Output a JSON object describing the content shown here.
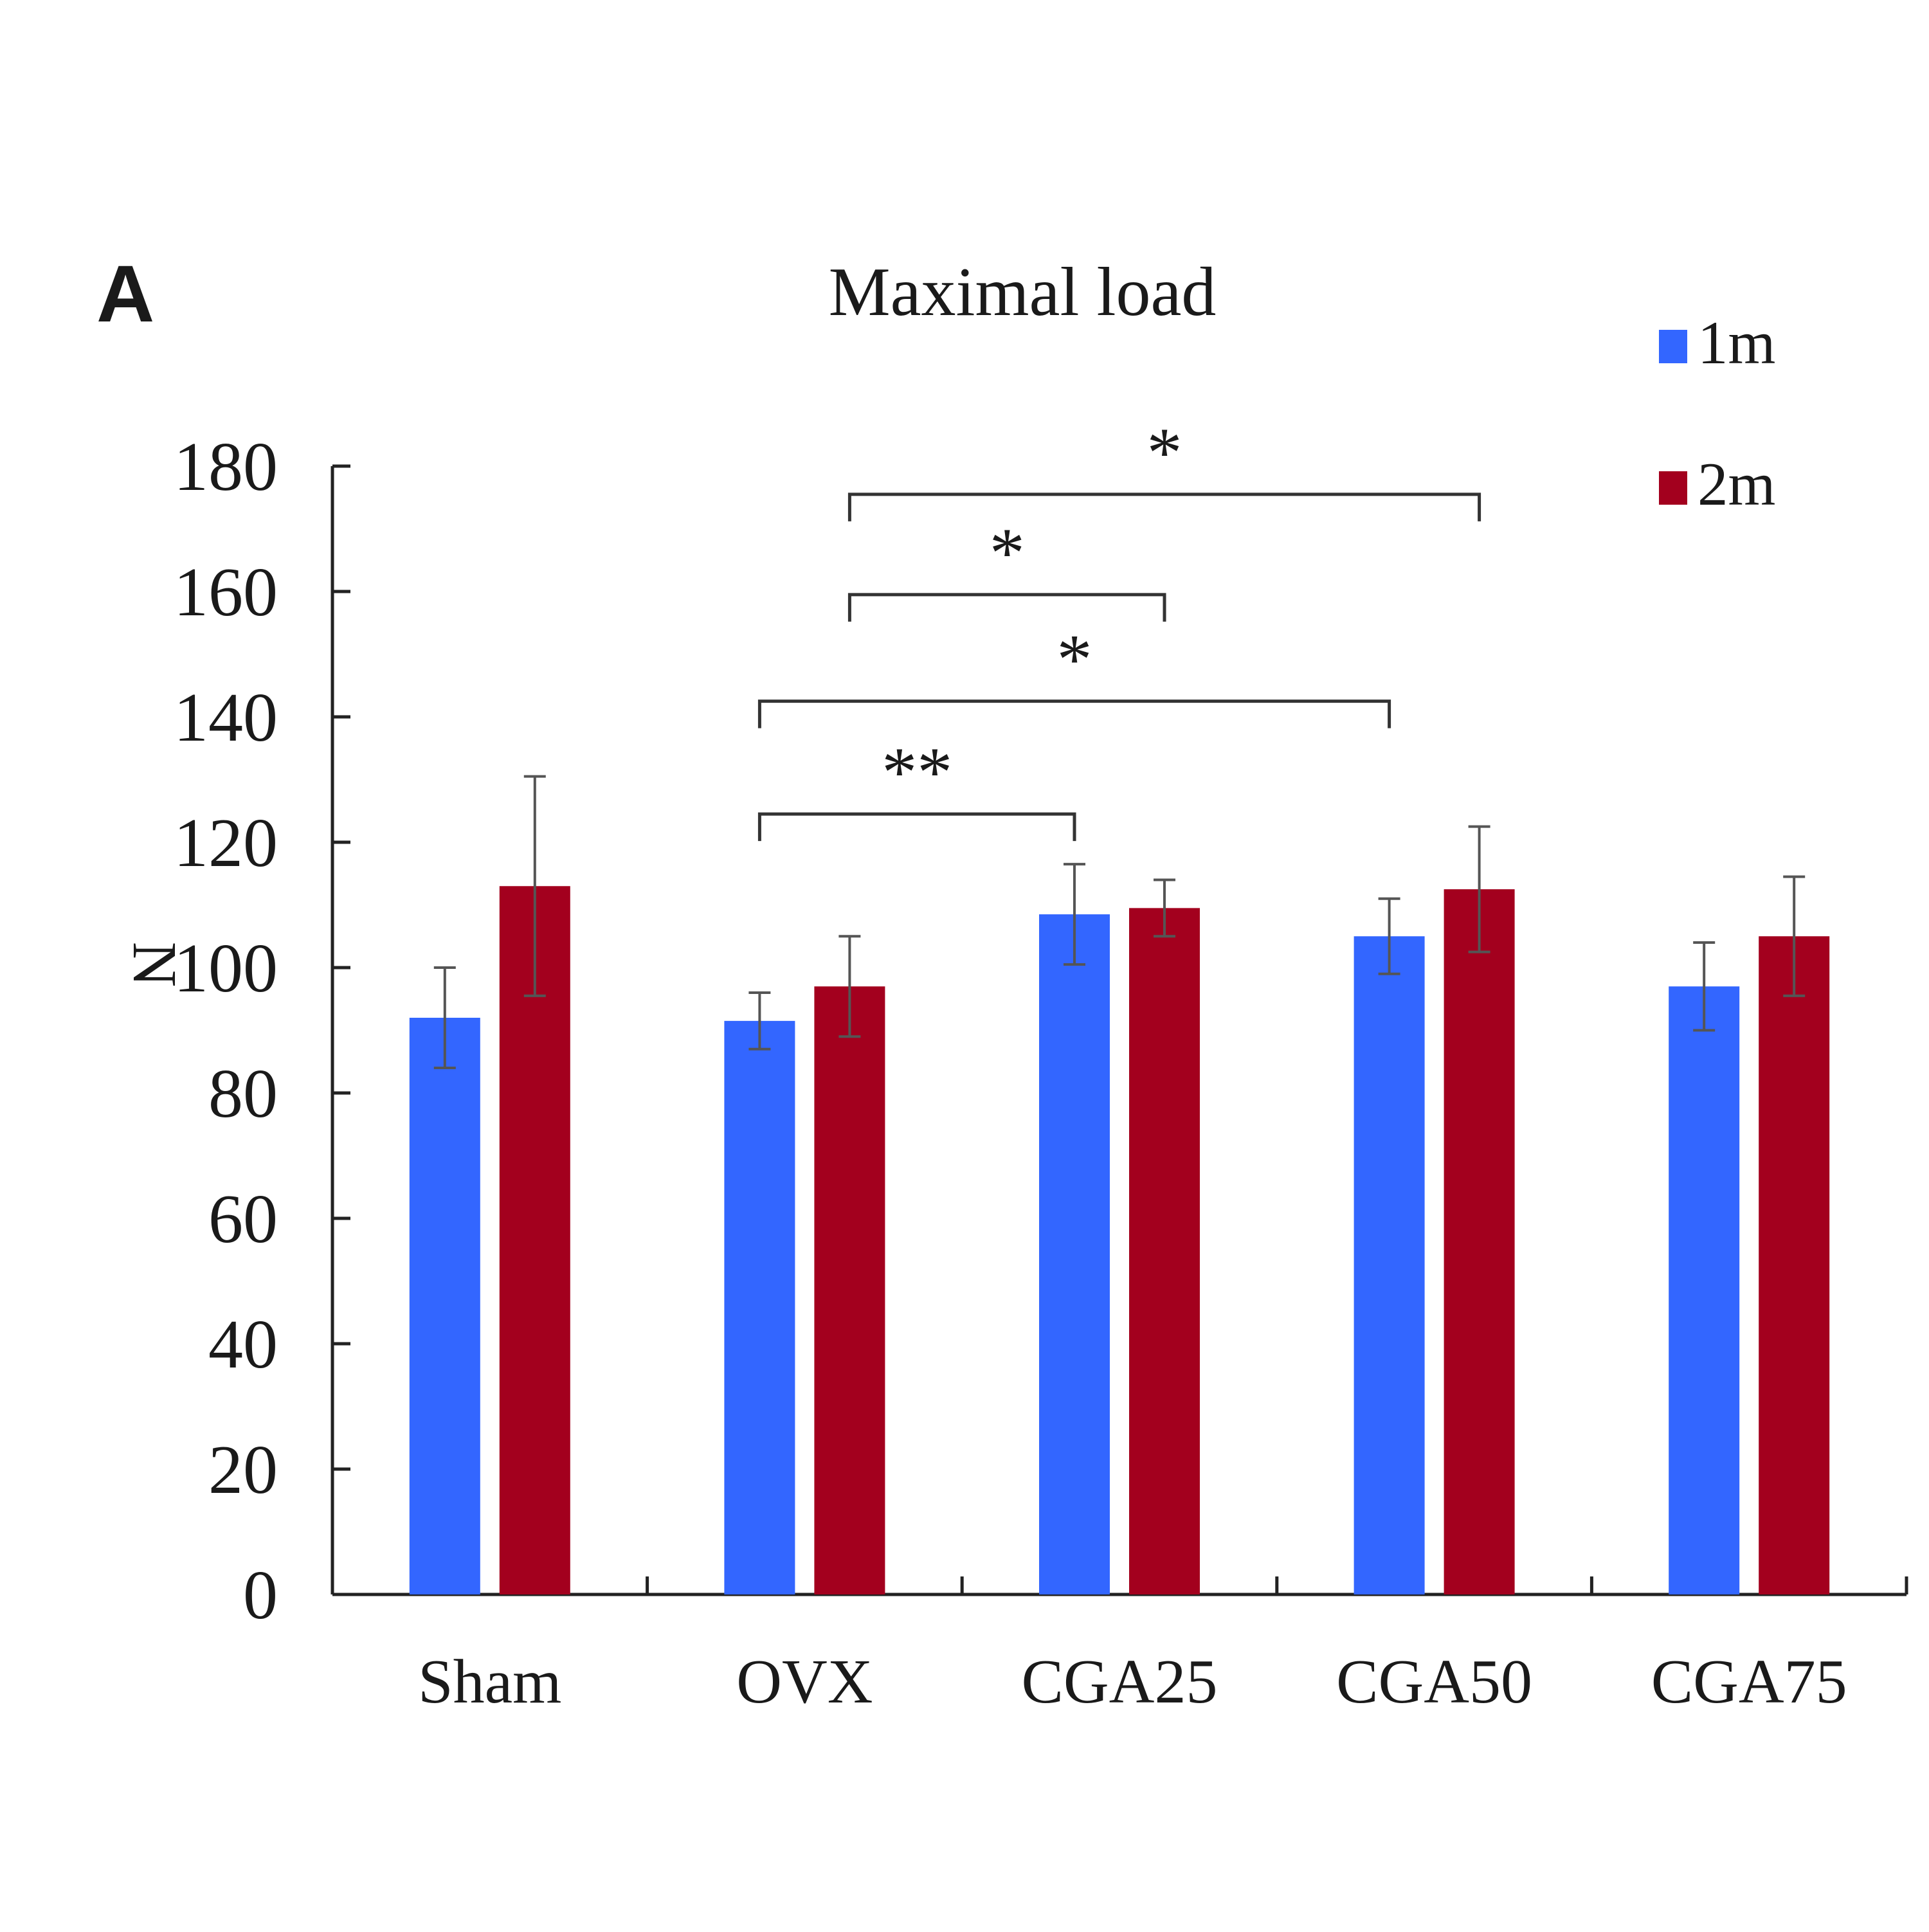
{
  "panel_label": "A",
  "colors": {
    "series_1m": "#3366ff",
    "series_2m": "#a3001e",
    "axis": "#222222",
    "error_bar": "#555555",
    "bracket": "#333333"
  },
  "chart_data": {
    "type": "bar",
    "title": "Maximal load",
    "xlabel": "",
    "ylabel": "N",
    "ylim": [
      0,
      180
    ],
    "yticks": [
      0,
      20,
      40,
      60,
      80,
      100,
      120,
      140,
      160,
      180
    ],
    "categories": [
      "Sham",
      "OVX",
      "CGA25",
      "CGA50",
      "CGA75"
    ],
    "series": [
      {
        "name": "1m",
        "values": [
          92,
          91.5,
          108.5,
          105,
          97
        ],
        "errors": [
          8,
          4.5,
          8,
          6,
          7
        ]
      },
      {
        "name": "2m",
        "values": [
          113,
          97,
          109.5,
          112.5,
          105
        ],
        "errors": [
          17.5,
          8,
          4.5,
          10,
          9.5
        ]
      }
    ],
    "legend": {
      "position": "top-right"
    },
    "grid": false,
    "significance": [
      {
        "from_category": 1,
        "from_series": 0,
        "to_category": 2,
        "to_series": 0,
        "y_value": 124.5,
        "label": "**"
      },
      {
        "from_category": 1,
        "from_series": 0,
        "to_category": 3,
        "to_series": 0,
        "y_value": 142.5,
        "label": "*"
      },
      {
        "from_category": 1,
        "from_series": 1,
        "to_category": 2,
        "to_series": 1,
        "y_value": 159.5,
        "label": "*"
      },
      {
        "from_category": 1,
        "from_series": 1,
        "to_category": 3,
        "to_series": 1,
        "y_value": 175.5,
        "label": "*"
      }
    ]
  }
}
